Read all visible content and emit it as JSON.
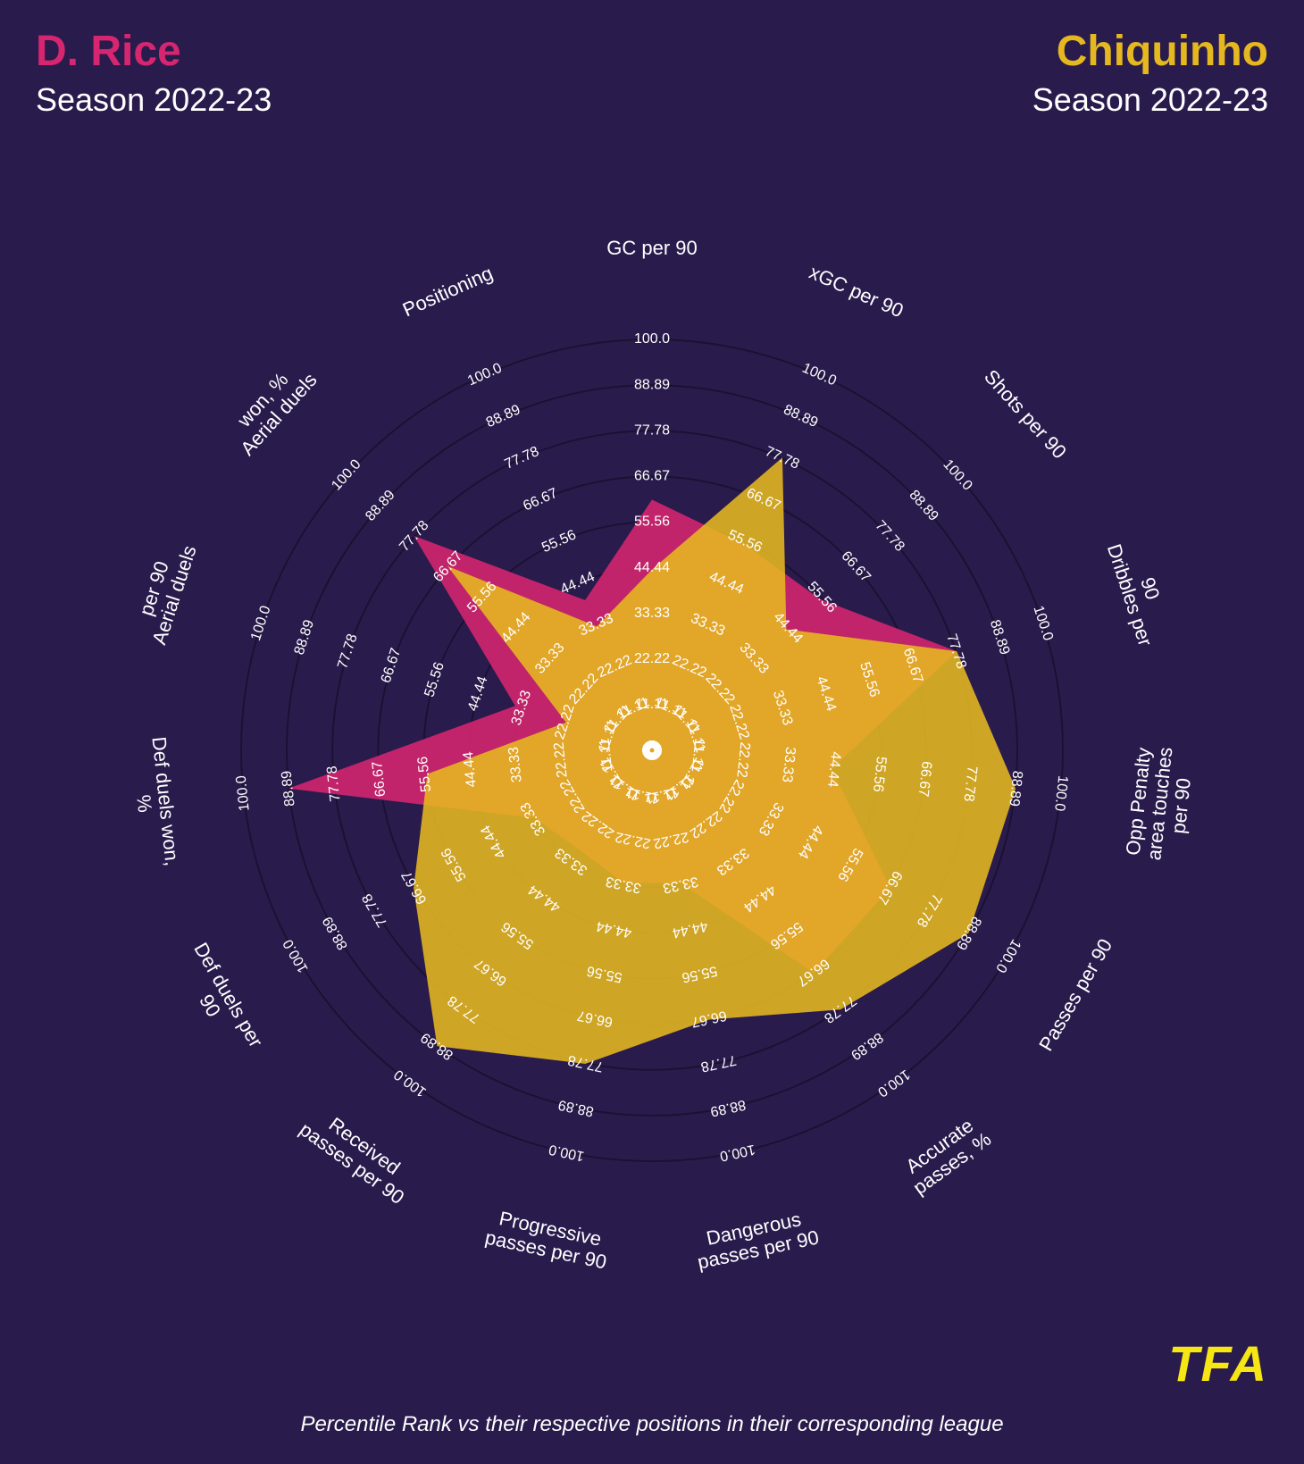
{
  "background_color": "#2a1b4d",
  "players": {
    "left": {
      "name": "D. Rice",
      "season": "Season 2022-23",
      "color": "#d6266f"
    },
    "right": {
      "name": "Chiquinho",
      "season": "Season 2022-23",
      "color": "#e6b820"
    }
  },
  "logo_text": "TFA",
  "logo_color": "#f5e614",
  "footer": "Percentile Rank vs their respective positions in their corresponding league",
  "chart": {
    "type": "radar",
    "ring_color": "#000000",
    "ring_opacity": 0.35,
    "label_color": "#ffffff",
    "ring_label_fontsize": 16,
    "axis_label_fontsize": 22,
    "fill_opacity": 0.88,
    "max": 100,
    "rings": [
      0.0,
      11.11,
      22.22,
      33.33,
      44.44,
      55.56,
      66.67,
      77.78,
      88.89,
      100.0
    ],
    "ring_labels": [
      "0.0",
      "11.11",
      "22.22",
      "33.33",
      "44.44",
      "55.56",
      "66.67",
      "77.78",
      "88.89",
      "100.0"
    ],
    "axes": [
      "GC per 90",
      "xGC per 90",
      "Shots per 90",
      "Dribbles per 90",
      "Opp Penalty area touches per 90",
      "Passes per 90",
      "Accurate passes, %",
      "Dangerous passes per 90",
      "Progressive passes per 90",
      "Received passes per 90",
      "Def duels per 90",
      "Def duels won, %",
      "Aerial duels per 90",
      "Aerial duels won, %",
      "Positioning"
    ],
    "series": [
      {
        "name": "D. Rice",
        "color": "#d6266f",
        "values": [
          61,
          55,
          55,
          78,
          44,
          67,
          67,
          33,
          33,
          30,
          33,
          89,
          35,
          78,
          40
        ]
      },
      {
        "name": "Chiquinho",
        "color": "#e6b820",
        "values": [
          44,
          78,
          44,
          78,
          89,
          89,
          78,
          67,
          78,
          89,
          67,
          55,
          22,
          67,
          33
        ]
      }
    ]
  }
}
